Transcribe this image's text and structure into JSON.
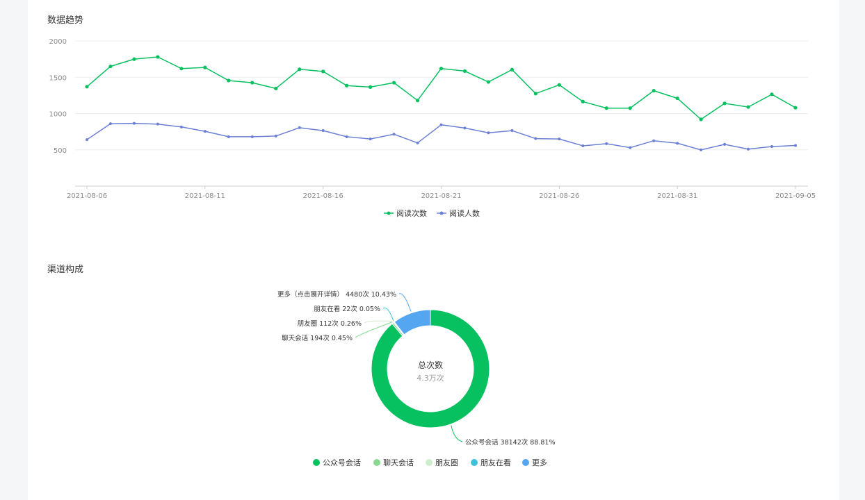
{
  "sections": {
    "trend_title": "数据趋势",
    "channel_title": "渠道构成"
  },
  "colors": {
    "green": "#07c160",
    "blue": "#6b7fd6",
    "light_green": "#86d98f",
    "pale_green": "#cdeecd",
    "cyan": "#3fc1dc",
    "sky": "#55a6f0"
  },
  "chart_data": [
    {
      "type": "line",
      "x": [
        "2021-08-06",
        "2021-08-07",
        "2021-08-08",
        "2021-08-09",
        "2021-08-10",
        "2021-08-11",
        "2021-08-12",
        "2021-08-13",
        "2021-08-14",
        "2021-08-15",
        "2021-08-16",
        "2021-08-17",
        "2021-08-18",
        "2021-08-19",
        "2021-08-20",
        "2021-08-21",
        "2021-08-22",
        "2021-08-23",
        "2021-08-24",
        "2021-08-25",
        "2021-08-26",
        "2021-08-27",
        "2021-08-28",
        "2021-08-29",
        "2021-08-30",
        "2021-08-31",
        "2021-09-01",
        "2021-09-02",
        "2021-09-03",
        "2021-09-04",
        "2021-09-05"
      ],
      "x_tick_labels": [
        "2021-08-06",
        "2021-08-11",
        "2021-08-16",
        "2021-08-21",
        "2021-08-26",
        "2021-08-31",
        "2021-09-05"
      ],
      "y_ticks": [
        "500",
        "1000",
        "1500",
        "2000"
      ],
      "ylim": [
        0,
        2000
      ],
      "grid": true,
      "legend_position": "bottom-center",
      "series": [
        {
          "name": "阅读次数",
          "color": "#07c160",
          "values": [
            1370,
            1650,
            1750,
            1780,
            1620,
            1635,
            1455,
            1425,
            1345,
            1610,
            1580,
            1385,
            1365,
            1425,
            1180,
            1620,
            1585,
            1435,
            1605,
            1275,
            1395,
            1165,
            1075,
            1075,
            1315,
            1210,
            920,
            1140,
            1090,
            1265,
            1080
          ]
        },
        {
          "name": "阅读人数",
          "color": "#6b7fd6",
          "values": [
            640,
            860,
            865,
            855,
            815,
            755,
            680,
            680,
            690,
            805,
            765,
            680,
            650,
            715,
            595,
            845,
            800,
            735,
            765,
            655,
            650,
            555,
            585,
            530,
            625,
            590,
            500,
            575,
            510,
            545,
            560
          ]
        }
      ]
    },
    {
      "type": "pie",
      "donut": true,
      "center_label": "总次数",
      "center_value": "4.3万次",
      "legend_position": "bottom-center",
      "slices": [
        {
          "name": "公众号会话",
          "value": 38142,
          "percent": 88.81,
          "label": "公众号会话 38142次 88.81%",
          "color": "#07c160"
        },
        {
          "name": "聊天会话",
          "value": 194,
          "percent": 0.45,
          "label": "聊天会话 194次 0.45%",
          "color": "#86d98f"
        },
        {
          "name": "朋友圈",
          "value": 112,
          "percent": 0.26,
          "label": "朋友圈 112次 0.26%",
          "color": "#cdeecd"
        },
        {
          "name": "朋友在看",
          "value": 22,
          "percent": 0.05,
          "label": "朋友在看 22次 0.05%",
          "color": "#3fc1dc"
        },
        {
          "name": "更多",
          "value": 4480,
          "percent": 10.43,
          "label": "更多（点击展开详情） 4480次 10.43%",
          "color": "#55a6f0"
        }
      ]
    }
  ]
}
